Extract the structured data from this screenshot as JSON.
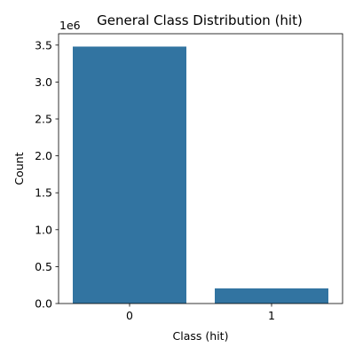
{
  "chart_data": {
    "type": "bar",
    "title": "General Class Distribution (hit)",
    "xlabel": "Class (hit)",
    "ylabel": "Count",
    "categories": [
      "0",
      "1"
    ],
    "values": [
      3480000,
      205000
    ],
    "ylim": [
      0,
      3654000
    ],
    "yticks": [
      0,
      500000,
      1000000,
      1500000,
      2000000,
      2500000,
      3000000,
      3500000
    ],
    "ytick_labels": [
      "0.0",
      "0.5",
      "1.0",
      "1.5",
      "2.0",
      "2.5",
      "3.0",
      "3.5"
    ],
    "y_offset_label": "1e6",
    "grid": false,
    "legend": "none",
    "bar_color": "#3274a1"
  }
}
